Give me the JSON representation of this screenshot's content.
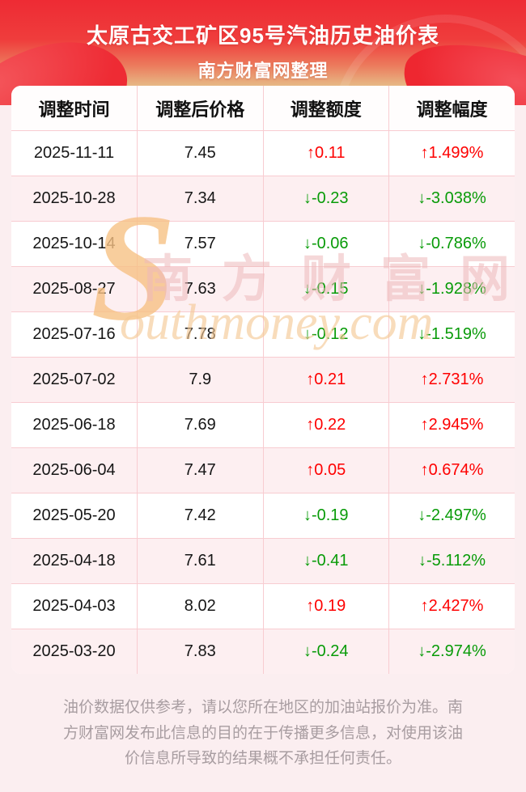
{
  "header": {
    "title": "太原古交工矿区95号汽油历史油价表",
    "subtitle": "南方财富网整理"
  },
  "table": {
    "columns": [
      "调整时间",
      "调整后价格",
      "调整额度",
      "调整幅度"
    ],
    "rows": [
      {
        "date": "2025-11-11",
        "price": "7.45",
        "change": "↑0.11",
        "percent": "↑1.499%",
        "direction": "up"
      },
      {
        "date": "2025-10-28",
        "price": "7.34",
        "change": "↓-0.23",
        "percent": "↓-3.038%",
        "direction": "down"
      },
      {
        "date": "2025-10-14",
        "price": "7.57",
        "change": "↓-0.06",
        "percent": "↓-0.786%",
        "direction": "down"
      },
      {
        "date": "2025-08-27",
        "price": "7.63",
        "change": "↓-0.15",
        "percent": "↓-1.928%",
        "direction": "down"
      },
      {
        "date": "2025-07-16",
        "price": "7.78",
        "change": "↓-0.12",
        "percent": "↓-1.519%",
        "direction": "down"
      },
      {
        "date": "2025-07-02",
        "price": "7.9",
        "change": "↑0.21",
        "percent": "↑2.731%",
        "direction": "up"
      },
      {
        "date": "2025-06-18",
        "price": "7.69",
        "change": "↑0.22",
        "percent": "↑2.945%",
        "direction": "up"
      },
      {
        "date": "2025-06-04",
        "price": "7.47",
        "change": "↑0.05",
        "percent": "↑0.674%",
        "direction": "up"
      },
      {
        "date": "2025-05-20",
        "price": "7.42",
        "change": "↓-0.19",
        "percent": "↓-2.497%",
        "direction": "down"
      },
      {
        "date": "2025-04-18",
        "price": "7.61",
        "change": "↓-0.41",
        "percent": "↓-5.112%",
        "direction": "down"
      },
      {
        "date": "2025-04-03",
        "price": "8.02",
        "change": "↑0.19",
        "percent": "↑2.427%",
        "direction": "up"
      },
      {
        "date": "2025-03-20",
        "price": "7.83",
        "change": "↓-0.24",
        "percent": "↓-2.974%",
        "direction": "down"
      }
    ]
  },
  "watermark": {
    "s": "S",
    "cjk": "南方财富网",
    "latin": "outhmoney.com"
  },
  "footer": {
    "disclaimer": "油价数据仅供参考，请以您所在地区的加油站报价为准。南方财富网发布此信息的目的在于传播更多信息，对使用该油价信息所导致的结果概不承担任何责任。"
  },
  "colors": {
    "up": "#fe0000",
    "down": "#089b08",
    "banner_red": "#ee2b34"
  }
}
